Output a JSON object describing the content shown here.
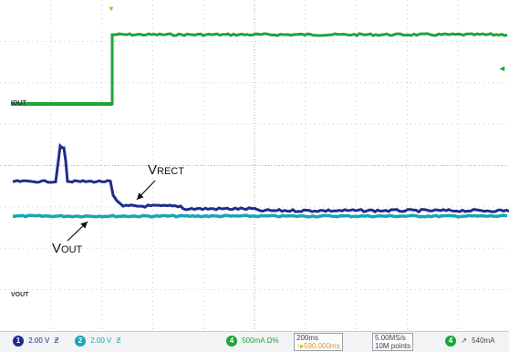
{
  "colors": {
    "ch1": "#1f2d8a",
    "ch2": "#17a6b4",
    "ch3": "#1fa33a",
    "ch4": "#12a02e",
    "grid": "#c8ccd2",
    "background": "#ffffff",
    "trigger": "#e0a020"
  },
  "annotations": {
    "vrect": {
      "main": "V",
      "sub": "RECT"
    },
    "vout": {
      "main": "V",
      "sub": "OUT"
    }
  },
  "channel_markers": {
    "iout": "IOUT",
    "vout": "VOUT",
    "trigger_icon": "trigger-marker-icon",
    "level_icon": "trigger-level-arrow-icon"
  },
  "status_bar": {
    "ch1": {
      "num": "1",
      "scale": "2.00 V",
      "icon": "bandwidth-limit-icon"
    },
    "ch2": {
      "num": "2",
      "scale": "2.00 V",
      "icon": "bandwidth-limit-icon"
    },
    "ch4": {
      "num": "4",
      "scale": "500mA Ω%"
    },
    "timebase": {
      "per_div": "200ms",
      "offset": "↑▸590.000ms"
    },
    "acq": {
      "rate": "5.00MS/s",
      "points": "10M points"
    },
    "trigger": {
      "num": "4",
      "slope_icon": "rising-edge-icon",
      "level": "540mA"
    }
  }
}
